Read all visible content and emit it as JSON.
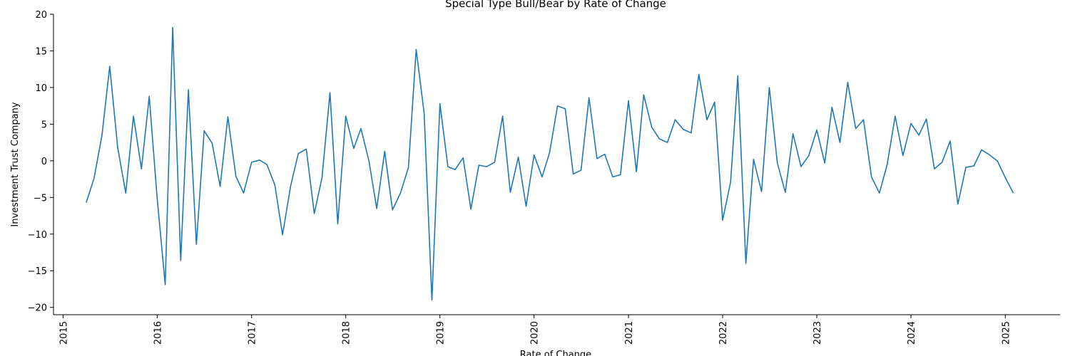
{
  "chart_data": {
    "type": "line",
    "title": "Special Type Bull/Bear by Rate of Change",
    "xlabel": "Rate of Change",
    "ylabel": "Investment Trust Company",
    "xlim": [
      "2014-11-25",
      "2025-08-01"
    ],
    "ylim": [
      -21,
      20
    ],
    "x_ticks": [
      "2015",
      "2016",
      "2017",
      "2018",
      "2019",
      "2020",
      "2021",
      "2022",
      "2023",
      "2024",
      "2025"
    ],
    "y_ticks": [
      20,
      15,
      10,
      5,
      0,
      -5,
      -10,
      -15,
      -20
    ],
    "grid": false,
    "line_color": "#1f77b4",
    "series": [
      {
        "x": [
          "2015-04",
          "2015-05",
          "2015-06",
          "2015-07",
          "2015-08",
          "2015-09",
          "2015-10",
          "2015-11",
          "2015-12",
          "2016-01",
          "2016-02",
          "2016-03",
          "2016-04",
          "2016-05",
          "2016-06",
          "2016-07",
          "2016-08",
          "2016-09",
          "2016-10",
          "2016-11",
          "2016-12",
          "2017-01",
          "2017-02",
          "2017-03",
          "2017-04",
          "2017-05",
          "2017-06",
          "2017-07",
          "2017-08",
          "2017-09",
          "2017-10",
          "2017-11",
          "2017-12",
          "2018-01",
          "2018-02",
          "2018-03",
          "2018-04",
          "2018-05",
          "2018-06",
          "2018-07",
          "2018-08",
          "2018-09",
          "2018-10",
          "2018-11",
          "2018-12",
          "2019-01",
          "2019-02",
          "2019-03",
          "2019-04",
          "2019-05",
          "2019-06",
          "2019-07",
          "2019-08",
          "2019-09",
          "2019-10",
          "2019-11",
          "2019-12",
          "2020-01",
          "2020-02",
          "2020-03",
          "2020-04",
          "2020-05",
          "2020-06",
          "2020-07",
          "2020-08",
          "2020-09",
          "2020-10",
          "2020-11",
          "2020-12",
          "2021-01",
          "2021-02",
          "2021-03",
          "2021-04",
          "2021-05",
          "2021-06",
          "2021-07",
          "2021-08",
          "2021-09",
          "2021-10",
          "2021-11",
          "2021-12",
          "2022-01",
          "2022-02",
          "2022-03",
          "2022-04",
          "2022-05",
          "2022-06",
          "2022-07",
          "2022-08",
          "2022-09",
          "2022-10",
          "2022-11",
          "2022-12",
          "2023-01",
          "2023-02",
          "2023-03",
          "2023-04",
          "2023-05",
          "2023-06",
          "2023-07",
          "2023-08",
          "2023-09",
          "2023-10",
          "2023-11",
          "2023-12",
          "2024-01",
          "2024-02",
          "2024-03",
          "2024-04",
          "2024-05",
          "2024-06",
          "2024-07",
          "2024-08",
          "2024-09",
          "2024-10",
          "2024-11",
          "2024-12",
          "2025-01",
          "2025-02"
        ],
        "values": [
          -5.7,
          -2.4,
          3.5,
          12.9,
          1.8,
          -4.4,
          6.1,
          -1.1,
          8.8,
          -5.2,
          -16.9,
          18.2,
          -13.6,
          9.7,
          -11.4,
          4.1,
          2.4,
          -3.5,
          6.0,
          -2.1,
          -4.4,
          -0.2,
          0.1,
          -0.5,
          -3.3,
          -10.1,
          -3.5,
          1.0,
          1.6,
          -7.2,
          -2.3,
          9.3,
          -8.6,
          6.1,
          1.7,
          4.4,
          0.0,
          -6.5,
          1.3,
          -6.7,
          -4.4,
          -0.9,
          15.2,
          6.5,
          -19.0,
          7.8,
          -0.8,
          -1.2,
          0.4,
          -6.6,
          -0.6,
          -0.8,
          -0.2,
          6.1,
          -4.3,
          0.5,
          -6.2,
          0.8,
          -2.2,
          1.1,
          7.5,
          7.1,
          -1.8,
          -1.3,
          8.6,
          0.3,
          0.9,
          -2.2,
          -1.9,
          8.2,
          -1.5,
          9.0,
          4.6,
          3.0,
          2.5,
          5.6,
          4.3,
          3.8,
          11.8,
          5.6,
          8.0,
          -8.1,
          -2.9,
          11.6,
          -14.0,
          0.2,
          -4.2,
          10.0,
          -0.3,
          -4.3,
          3.7,
          -0.8,
          0.7,
          4.2,
          -0.3,
          7.3,
          2.5,
          10.7,
          4.4,
          5.6,
          -2.2,
          -4.4,
          -0.5,
          6.1,
          0.7,
          5.1,
          3.5,
          5.7,
          -1.1,
          -0.2,
          2.7,
          -5.9,
          -0.9,
          -0.7,
          1.5,
          0.8,
          0.0,
          -2.3,
          -4.4
        ]
      }
    ]
  }
}
